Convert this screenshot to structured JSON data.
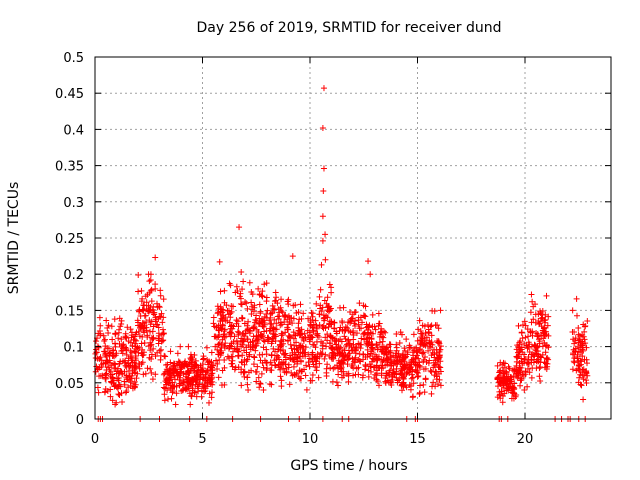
{
  "chart_data": {
    "type": "scatter",
    "title": "Day 256 of 2019, SRMTID for receiver dund",
    "xlabel": "GPS time / hours",
    "ylabel": "SRMTID / TECUs",
    "xlim": [
      0,
      24
    ],
    "ylim": [
      0,
      0.5
    ],
    "xticks": [
      0,
      5,
      10,
      15,
      20
    ],
    "xtick_labels": [
      "0",
      "5",
      "10",
      "15",
      "20"
    ],
    "yticks": [
      0,
      0.05,
      0.1,
      0.15,
      0.2,
      0.25,
      0.3,
      0.35,
      0.4,
      0.45,
      0.5
    ],
    "ytick_labels": [
      "0",
      "0.05",
      "0.1",
      "0.15",
      "0.2",
      "0.25",
      "0.3",
      "0.35",
      "0.4",
      "0.45",
      "0.5"
    ],
    "grid": true,
    "marker": "+",
    "color": "#ff0000",
    "notable_points": [
      {
        "x": 10.65,
        "y": 0.457
      },
      {
        "x": 10.6,
        "y": 0.402
      },
      {
        "x": 10.65,
        "y": 0.346
      },
      {
        "x": 10.62,
        "y": 0.315
      },
      {
        "x": 10.6,
        "y": 0.28
      },
      {
        "x": 10.7,
        "y": 0.255
      },
      {
        "x": 10.6,
        "y": 0.246
      },
      {
        "x": 6.7,
        "y": 0.265
      },
      {
        "x": 9.2,
        "y": 0.225
      },
      {
        "x": 2.8,
        "y": 0.223
      },
      {
        "x": 12.7,
        "y": 0.218
      },
      {
        "x": 12.8,
        "y": 0.2
      },
      {
        "x": 5.8,
        "y": 0.217
      },
      {
        "x": 6.8,
        "y": 0.203
      },
      {
        "x": 22.4,
        "y": 0.166
      },
      {
        "x": 20.3,
        "y": 0.172
      },
      {
        "x": 21.0,
        "y": 0.17
      }
    ],
    "clusters": [
      {
        "x_start": 0.0,
        "x_end": 2.0,
        "y_min": 0.02,
        "y_max": 0.14
      },
      {
        "x_start": 2.0,
        "x_end": 3.2,
        "y_min": 0.05,
        "y_max": 0.2
      },
      {
        "x_start": 3.2,
        "x_end": 5.5,
        "y_min": 0.02,
        "y_max": 0.1
      },
      {
        "x_start": 5.5,
        "x_end": 8.5,
        "y_min": 0.04,
        "y_max": 0.19
      },
      {
        "x_start": 8.5,
        "x_end": 10.4,
        "y_min": 0.03,
        "y_max": 0.17
      },
      {
        "x_start": 10.4,
        "x_end": 11.0,
        "y_min": 0.03,
        "y_max": 0.22
      },
      {
        "x_start": 11.0,
        "x_end": 13.5,
        "y_min": 0.04,
        "y_max": 0.16
      },
      {
        "x_start": 13.5,
        "x_end": 15.0,
        "y_min": 0.03,
        "y_max": 0.12
      },
      {
        "x_start": 15.0,
        "x_end": 16.1,
        "y_min": 0.03,
        "y_max": 0.15
      },
      {
        "x_start": 18.7,
        "x_end": 19.6,
        "y_min": 0.02,
        "y_max": 0.08
      },
      {
        "x_start": 19.6,
        "x_end": 20.2,
        "y_min": 0.04,
        "y_max": 0.14
      },
      {
        "x_start": 20.2,
        "x_end": 21.1,
        "y_min": 0.05,
        "y_max": 0.17
      },
      {
        "x_start": 22.2,
        "x_end": 22.9,
        "y_min": 0.02,
        "y_max": 0.15
      }
    ],
    "zero_points_x": [
      0.15,
      0.25,
      0.35,
      2.1,
      3.0,
      4.4,
      5.2,
      6.4,
      7.7,
      9.0,
      9.5,
      10.6,
      11.5,
      11.8,
      14.5,
      14.9,
      15.0,
      18.8,
      18.9,
      19.2,
      21.4,
      21.7,
      22.0,
      22.1,
      22.5,
      22.8
    ]
  }
}
